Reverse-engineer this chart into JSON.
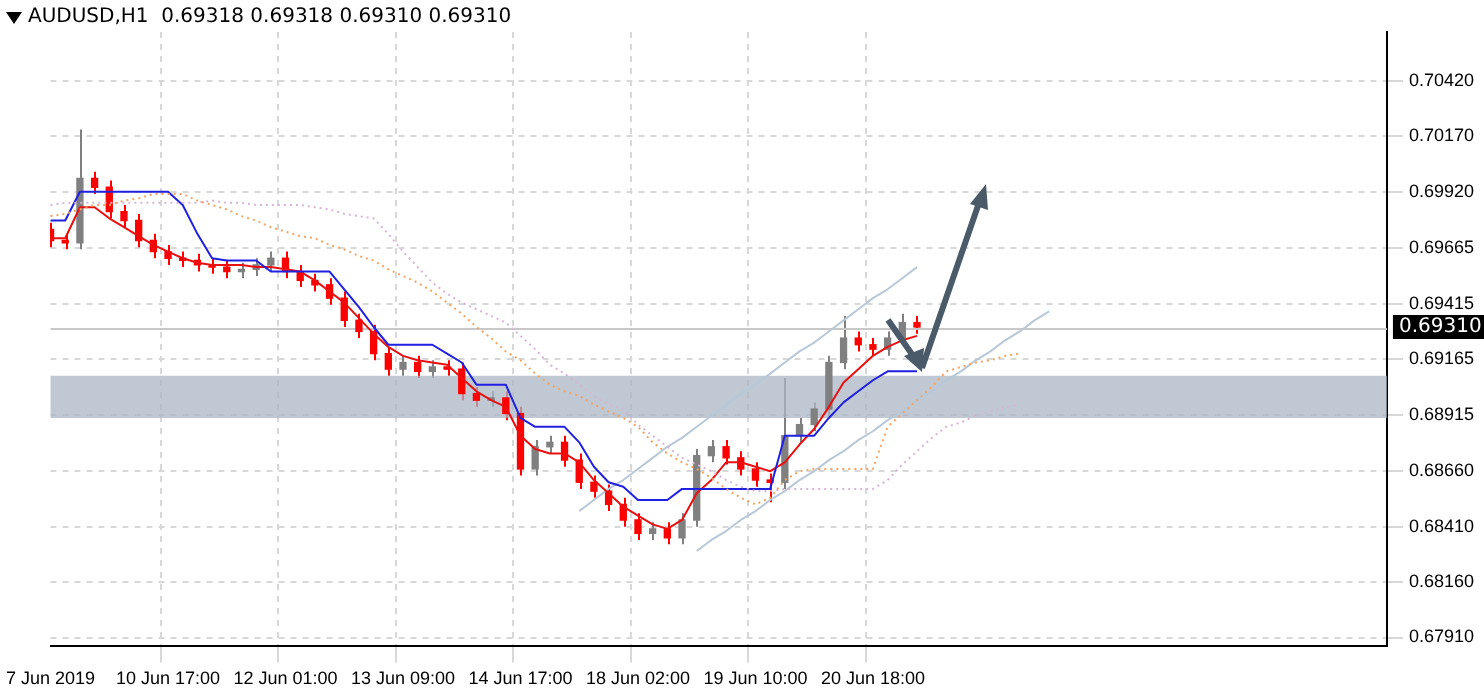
{
  "chart_data": {
    "type": "candlestick",
    "title": "AUDUSD,H1  0.69318 0.69318 0.69310 0.69310",
    "categories": [
      "7 Jun 2019",
      null,
      null,
      null,
      null,
      null,
      null,
      null,
      "10 Jun 17:00",
      null,
      null,
      null,
      null,
      null,
      null,
      null,
      "12 Jun 01:00",
      null,
      null,
      null,
      null,
      null,
      null,
      null,
      "13 Jun 09:00",
      null,
      null,
      null,
      null,
      null,
      null,
      null,
      "14 Jun 17:00",
      null,
      null,
      null,
      null,
      null,
      null,
      null,
      "18 Jun 02:00",
      null,
      null,
      null,
      null,
      null,
      null,
      null,
      "19 Jun 10:00",
      null,
      null,
      null,
      null,
      null,
      null,
      null,
      "20 Jun 18:00",
      null,
      null,
      null,
      null,
      null,
      null,
      null,
      null,
      null,
      null,
      null,
      null,
      null,
      null,
      null,
      null,
      null,
      null,
      null,
      null,
      null,
      null,
      null,
      null,
      null,
      null,
      null,
      null,
      null,
      null,
      null,
      null,
      null,
      null,
      null
    ],
    "ohlc": [
      [
        0.6975,
        0.6978,
        0.6967,
        0.697
      ],
      [
        0.697,
        0.6973,
        0.6966,
        0.6969
      ],
      [
        0.6969,
        0.702,
        0.6966,
        0.6998
      ],
      [
        0.6998,
        0.7001,
        0.6991,
        0.6994
      ],
      [
        0.6994,
        0.6997,
        0.698,
        0.6983
      ],
      [
        0.6983,
        0.6986,
        0.6976,
        0.6979
      ],
      [
        0.6979,
        0.6982,
        0.6967,
        0.697
      ],
      [
        0.697,
        0.6973,
        0.6962,
        0.6965
      ],
      [
        0.6965,
        0.6968,
        0.6959,
        0.6962
      ],
      [
        0.6962,
        0.6965,
        0.6958,
        0.6961
      ],
      [
        0.6961,
        0.6964,
        0.6956,
        0.6959
      ],
      [
        0.6959,
        0.6962,
        0.6955,
        0.6958
      ],
      [
        0.6958,
        0.6961,
        0.6953,
        0.6956
      ],
      [
        0.6956,
        0.696,
        0.6953,
        0.6957
      ],
      [
        0.6957,
        0.6962,
        0.6954,
        0.6959
      ],
      [
        0.6959,
        0.6965,
        0.6956,
        0.6962
      ],
      [
        0.6962,
        0.6965,
        0.6953,
        0.6956
      ],
      [
        0.6956,
        0.6959,
        0.6949,
        0.6952
      ],
      [
        0.6952,
        0.6955,
        0.6947,
        0.695
      ],
      [
        0.695,
        0.6953,
        0.6941,
        0.6944
      ],
      [
        0.6944,
        0.6947,
        0.6931,
        0.6934
      ],
      [
        0.6934,
        0.6937,
        0.6926,
        0.6929
      ],
      [
        0.6929,
        0.6932,
        0.6916,
        0.6919
      ],
      [
        0.6919,
        0.6922,
        0.6909,
        0.6912
      ],
      [
        0.6912,
        0.6918,
        0.6909,
        0.6915
      ],
      [
        0.6915,
        0.6918,
        0.6908,
        0.6911
      ],
      [
        0.6911,
        0.6916,
        0.6908,
        0.6913
      ],
      [
        0.6913,
        0.6916,
        0.6909,
        0.6912
      ],
      [
        0.6912,
        0.6915,
        0.6898,
        0.6901
      ],
      [
        0.6901,
        0.6904,
        0.6895,
        0.6898
      ],
      [
        0.6898,
        0.6902,
        0.6895,
        0.6899
      ],
      [
        0.6899,
        0.6902,
        0.6889,
        0.6892
      ],
      [
        0.6892,
        0.6895,
        0.6864,
        0.6867
      ],
      [
        0.6867,
        0.688,
        0.6864,
        0.6877
      ],
      [
        0.6877,
        0.6882,
        0.6874,
        0.6879
      ],
      [
        0.6879,
        0.6882,
        0.6868,
        0.6871
      ],
      [
        0.6871,
        0.6874,
        0.6858,
        0.6861
      ],
      [
        0.6861,
        0.6864,
        0.6854,
        0.6857
      ],
      [
        0.6857,
        0.686,
        0.6848,
        0.6851
      ],
      [
        0.6851,
        0.6854,
        0.6841,
        0.6844
      ],
      [
        0.6844,
        0.6847,
        0.6835,
        0.6838
      ],
      [
        0.6838,
        0.6843,
        0.6835,
        0.684
      ],
      [
        0.684,
        0.6843,
        0.6833,
        0.6836
      ],
      [
        0.6836,
        0.6847,
        0.6833,
        0.6844
      ],
      [
        0.6844,
        0.6876,
        0.6841,
        0.6873
      ],
      [
        0.6873,
        0.688,
        0.687,
        0.6877
      ],
      [
        0.6877,
        0.688,
        0.6869,
        0.6872
      ],
      [
        0.6872,
        0.6875,
        0.6864,
        0.6867
      ],
      [
        0.6867,
        0.687,
        0.6859,
        0.6862
      ],
      [
        0.6862,
        0.6865,
        0.6852,
        0.6861
      ],
      [
        0.6861,
        0.6908,
        0.6858,
        0.6882
      ],
      [
        0.6882,
        0.689,
        0.6879,
        0.6887
      ],
      [
        0.6887,
        0.6897,
        0.6884,
        0.6894
      ],
      [
        0.6894,
        0.6918,
        0.6891,
        0.6915
      ],
      [
        0.6915,
        0.6936,
        0.6912,
        0.6926
      ],
      [
        0.6926,
        0.6929,
        0.692,
        0.6923
      ],
      [
        0.6923,
        0.6926,
        0.6918,
        0.6921
      ],
      [
        0.6921,
        0.6929,
        0.6918,
        0.6926
      ],
      [
        0.6926,
        0.6937,
        0.6923,
        0.6933
      ],
      [
        0.6933,
        0.6936,
        0.6928,
        0.6931
      ],
      null,
      null,
      null,
      null,
      null,
      null,
      null,
      null,
      null,
      null,
      null,
      null,
      null,
      null,
      null,
      null,
      null,
      null,
      null,
      null,
      null,
      null,
      null,
      null,
      null,
      null,
      null,
      null,
      null,
      null,
      null,
      null
    ],
    "colors": [
      "#ff0000",
      "#ff0000",
      "#808080",
      "#ff0000",
      "#ff0000",
      "#ff0000",
      "#ff0000",
      "#ff0000",
      "#ff0000",
      "#ff0000",
      "#ff0000",
      "#ff0000",
      "#ff0000",
      "#808080",
      "#808080",
      "#808080",
      "#ff0000",
      "#ff0000",
      "#ff0000",
      "#ff0000",
      "#ff0000",
      "#ff0000",
      "#ff0000",
      "#ff0000",
      "#808080",
      "#ff0000",
      "#808080",
      "#ff0000",
      "#ff0000",
      "#ff0000",
      "#808080",
      "#ff0000",
      "#ff0000",
      "#808080",
      "#808080",
      "#ff0000",
      "#ff0000",
      "#ff0000",
      "#ff0000",
      "#ff0000",
      "#ff0000",
      "#808080",
      "#ff0000",
      "#808080",
      "#808080",
      "#808080",
      "#ff0000",
      "#ff0000",
      "#ff0000",
      "#ff0000",
      "#808080",
      "#808080",
      "#808080",
      "#808080",
      "#808080",
      "#ff0000",
      "#ff0000",
      "#808080",
      "#808080",
      "#ff0000",
      null,
      null,
      null,
      null,
      null,
      null,
      null,
      null,
      null,
      null,
      null,
      null,
      null,
      null,
      null,
      null,
      null,
      null,
      null,
      null,
      null,
      null,
      null,
      null,
      null,
      null,
      null,
      null,
      null,
      null,
      null,
      null
    ],
    "series": [
      {
        "type": "line",
        "color": "#f4a460",
        "line_style": "dotted",
        "values": [
          0.6981,
          0.6982,
          0.6984,
          0.6986,
          0.6986,
          0.6988,
          0.6989,
          0.6991,
          0.6991,
          0.6991,
          0.6988,
          0.6986,
          0.6984,
          0.6981,
          0.6979,
          0.6976,
          0.6974,
          0.6972,
          0.6971,
          0.6968,
          0.6966,
          0.6963,
          0.6961,
          0.6957,
          0.6954,
          0.6951,
          0.6947,
          0.6942,
          0.6937,
          0.6931,
          0.6926,
          0.692,
          0.6916,
          0.691,
          0.6905,
          0.6902,
          0.69,
          0.6896,
          0.6893,
          0.689,
          0.6886,
          0.6879,
          0.6874,
          0.687,
          0.6867,
          0.6863,
          0.6858,
          0.6854,
          0.6851,
          0.6854,
          0.6862,
          0.6866,
          0.6867,
          0.6867,
          0.6867,
          0.6867,
          0.6867,
          0.6886,
          0.6892,
          0.6898,
          0.6904,
          0.6911,
          0.6913,
          0.6915,
          0.6916,
          0.6918,
          0.6919,
          null,
          null,
          null,
          null,
          null,
          null,
          null,
          null,
          null,
          null,
          null,
          null,
          null,
          null,
          null,
          null,
          null,
          null,
          null,
          null,
          null,
          null,
          null,
          null,
          null
        ]
      },
      {
        "type": "line",
        "color": "#d8b4d8",
        "line_style": "dotted",
        "values": [
          0.6986,
          0.6987,
          0.6987,
          0.6987,
          0.6987,
          0.6987,
          0.6987,
          0.6987,
          0.6987,
          0.6987,
          0.6987,
          0.6988,
          0.6987,
          0.6987,
          0.6986,
          0.6986,
          0.6986,
          0.6986,
          0.6985,
          0.6984,
          0.6982,
          0.6981,
          0.698,
          0.6973,
          0.6965,
          0.6958,
          0.6951,
          0.6946,
          0.6942,
          0.6939,
          0.6936,
          0.6933,
          0.6927,
          0.6921,
          0.6914,
          0.691,
          0.6905,
          0.69,
          0.6896,
          0.6894,
          0.6887,
          0.6882,
          0.6877,
          0.6872,
          0.6869,
          0.6866,
          0.6862,
          0.6859,
          0.6857,
          0.6857,
          0.6858,
          0.6858,
          0.6858,
          0.6858,
          0.6858,
          0.6858,
          0.6858,
          0.6862,
          0.6869,
          0.6875,
          0.6881,
          0.6886,
          0.6888,
          0.6891,
          0.6893,
          0.6895,
          0.6896,
          null,
          null,
          null,
          null,
          null,
          null,
          null,
          null,
          null,
          null,
          null,
          null,
          null,
          null,
          null,
          null,
          null,
          null,
          null,
          null,
          null,
          null,
          null,
          null,
          null
        ]
      },
      {
        "type": "line",
        "color": "#2020e0",
        "values": [
          0.6979,
          0.6979,
          0.6992,
          0.6992,
          0.6992,
          0.6992,
          0.6992,
          0.6992,
          0.6992,
          0.6986,
          0.6973,
          0.6962,
          0.6961,
          0.6961,
          0.6961,
          0.6956,
          0.6956,
          0.6956,
          0.6956,
          0.6956,
          0.6948,
          0.694,
          0.6931,
          0.6923,
          0.6923,
          0.6923,
          0.6923,
          0.6919,
          0.6915,
          0.6905,
          0.6905,
          0.6905,
          0.689,
          0.6886,
          0.6886,
          0.6886,
          0.6879,
          0.6868,
          0.6861,
          0.6859,
          0.6853,
          0.6853,
          0.6853,
          0.6858,
          0.6858,
          0.6858,
          0.6858,
          0.6858,
          0.6858,
          0.6858,
          0.6882,
          0.6882,
          0.6882,
          0.689,
          0.6897,
          0.6902,
          0.6907,
          0.6911,
          0.6911,
          0.6911,
          null,
          null,
          null,
          null,
          null,
          null,
          null,
          null,
          null,
          null,
          null,
          null,
          null,
          null,
          null,
          null,
          null,
          null,
          null,
          null,
          null,
          null,
          null,
          null,
          null,
          null,
          null,
          null,
          null,
          null,
          null,
          null
        ]
      },
      {
        "type": "line",
        "color": "#e81010",
        "values": [
          0.6971,
          0.6971,
          0.6985,
          0.6985,
          0.698,
          0.6976,
          0.6972,
          0.6968,
          0.6965,
          0.6962,
          0.696,
          0.6959,
          0.6959,
          0.6959,
          0.6958,
          0.6958,
          0.6957,
          0.6956,
          0.6952,
          0.6947,
          0.6942,
          0.6935,
          0.6928,
          0.6922,
          0.6918,
          0.6916,
          0.6915,
          0.6914,
          0.6908,
          0.6902,
          0.6898,
          0.6895,
          0.6882,
          0.6876,
          0.6874,
          0.6874,
          0.687,
          0.6862,
          0.6856,
          0.685,
          0.6846,
          0.6842,
          0.684,
          0.6844,
          0.6856,
          0.6862,
          0.687,
          0.687,
          0.6868,
          0.6866,
          0.687,
          0.6878,
          0.6885,
          0.6895,
          0.6906,
          0.6912,
          0.6918,
          0.6922,
          0.6925,
          0.6927,
          null,
          null,
          null,
          null,
          null,
          null,
          null,
          null,
          null,
          null,
          null,
          null,
          null,
          null,
          null,
          null,
          null,
          null,
          null,
          null,
          null,
          null,
          null,
          null,
          null,
          null,
          null,
          null,
          null,
          null,
          null,
          null
        ]
      },
      {
        "type": "line",
        "color": "#b8c8d8",
        "values": [
          null,
          null,
          null,
          null,
          null,
          null,
          null,
          null,
          null,
          null,
          null,
          null,
          null,
          null,
          null,
          null,
          null,
          null,
          null,
          null,
          null,
          null,
          null,
          null,
          null,
          null,
          null,
          null,
          null,
          null,
          null,
          null,
          null,
          null,
          null,
          null,
          0.6848,
          0.6853,
          0.6858,
          0.6862,
          0.6867,
          0.6872,
          0.6877,
          0.6881,
          0.6886,
          0.6891,
          0.6896,
          0.6901,
          0.6905,
          0.691,
          0.6915,
          0.692,
          0.6924,
          0.6929,
          0.6934,
          0.6939,
          0.6944,
          0.6948,
          0.6953,
          0.6958,
          null,
          null,
          null,
          null,
          null,
          null,
          null,
          null,
          null,
          null,
          null,
          null,
          null,
          null,
          null,
          null,
          null,
          null,
          null,
          null,
          null,
          null,
          null,
          null,
          null,
          null,
          null,
          null,
          null,
          null,
          null,
          null
        ]
      },
      {
        "type": "line",
        "color": "#b8c8d8",
        "values": [
          null,
          null,
          null,
          null,
          null,
          null,
          null,
          null,
          null,
          null,
          null,
          null,
          null,
          null,
          null,
          null,
          null,
          null,
          null,
          null,
          null,
          null,
          null,
          null,
          null,
          null,
          null,
          null,
          null,
          null,
          null,
          null,
          null,
          null,
          null,
          null,
          null,
          null,
          null,
          null,
          null,
          null,
          null,
          null,
          0.683,
          0.6835,
          0.6839,
          0.6844,
          0.6848,
          0.6853,
          0.6857,
          0.6862,
          0.6866,
          0.6871,
          0.6875,
          0.688,
          0.6884,
          0.6889,
          0.6893,
          0.6898,
          0.6902,
          0.6907,
          0.6911,
          0.6916,
          0.692,
          0.6925,
          0.6929,
          0.6934,
          0.6938,
          null,
          null,
          null,
          null,
          null,
          null,
          null,
          null,
          null,
          null,
          null,
          null,
          null,
          null,
          null,
          null,
          null,
          null,
          null,
          null,
          null,
          null,
          null
        ]
      }
    ],
    "ylim": [
      0.6787,
      0.7064
    ],
    "yticks": [
      {
        "value": 0.7042,
        "label": "0.70420"
      },
      {
        "value": 0.7017,
        "label": "0.70170"
      },
      {
        "value": 0.6992,
        "label": "0.69920"
      },
      {
        "value": 0.69665,
        "label": "0.69665"
      },
      {
        "value": 0.69415,
        "label": "0.69415"
      },
      {
        "value": 0.69165,
        "label": "0.69165"
      },
      {
        "value": 0.68915,
        "label": "0.68915"
      },
      {
        "value": 0.6866,
        "label": "0.68660"
      },
      {
        "value": 0.6841,
        "label": "0.68410"
      },
      {
        "value": 0.6816,
        "label": "0.68160"
      },
      {
        "value": 0.6791,
        "label": "0.67910"
      }
    ],
    "grid": true,
    "ref_lines": [
      {
        "axis": "y",
        "value": 0.6931,
        "label": "0.69310",
        "color": "#c8c8c8"
      }
    ],
    "bands": [
      {
        "axis": "y",
        "from": 0.689,
        "to": 0.6909,
        "color": "#a9b6c4"
      }
    ]
  }
}
